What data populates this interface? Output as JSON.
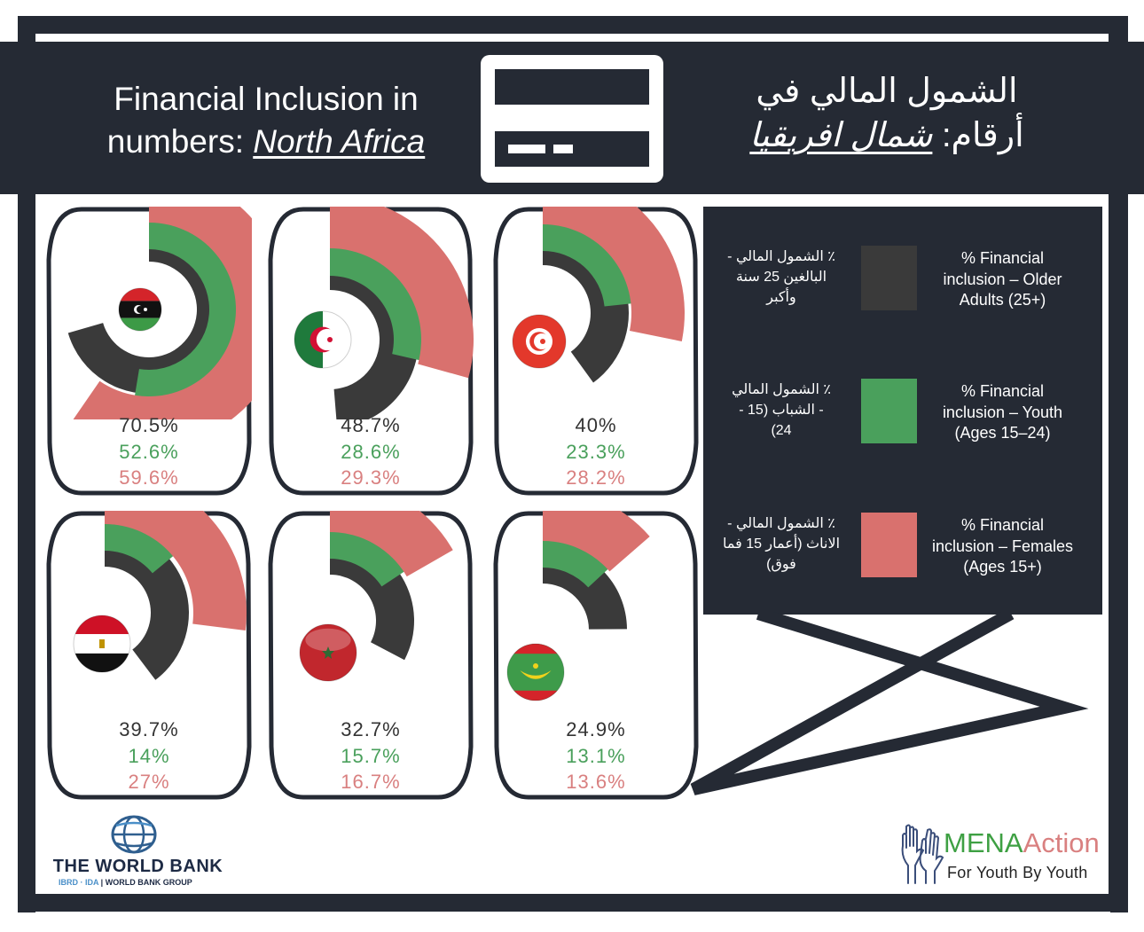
{
  "header": {
    "title_en_line1": "Financial Inclusion in",
    "title_en_line2_prefix": "numbers: ",
    "title_en_region": "North Africa",
    "title_ar_line1": "الشمول المالي في",
    "title_ar_line2_prefix": "أرقام: ",
    "title_ar_region": "شمال افريقيا",
    "icon": "credit-card-icon"
  },
  "colors": {
    "frame": "#252a34",
    "older": "#3a3a3a",
    "youth": "#4aa05c",
    "female": "#d9716e",
    "older_text": "#333333",
    "youth_text": "#4aa05c",
    "female_text": "#d98080"
  },
  "legend": {
    "items": [
      {
        "key": "older",
        "label_en": "% Financial inclusion – Older Adults (25+)",
        "label_en_lines": [
          "% Financial",
          "inclusion – Older",
          "Adults (25+)"
        ],
        "label_ar_lines": [
          "٪ الشمول المالي -",
          "البالغين 25 سنة",
          "وأكبر"
        ],
        "color": "#3a3a3a"
      },
      {
        "key": "youth",
        "label_en": "% Financial inclusion – Youth (Ages 15–24)",
        "label_en_lines": [
          "% Financial",
          "inclusion – Youth",
          "(Ages 15–24)"
        ],
        "label_ar_lines": [
          "٪ الشمول المالي",
          "- الشباب (15 -",
          "24)"
        ],
        "color": "#4aa05c"
      },
      {
        "key": "female",
        "label_en": "% Financial inclusion – Females (Ages 15+)",
        "label_en_lines": [
          "% Financial",
          "inclusion – Females",
          "(Ages 15+)"
        ],
        "label_ar_lines": [
          "٪ الشمول المالي -",
          "الاناث (أعمار 15 فما",
          "فوق)"
        ],
        "color": "#d9716e"
      }
    ]
  },
  "countries": [
    {
      "name": "Libya",
      "flag": "libya-flag-icon",
      "older": "70.5%",
      "youth": "52.6%",
      "female": "59.6%"
    },
    {
      "name": "Algeria",
      "flag": "algeria-flag-icon",
      "older": "48.7%",
      "youth": "28.6%",
      "female": "29.3%"
    },
    {
      "name": "Tunisia",
      "flag": "tunisia-flag-icon",
      "older": "40%",
      "youth": "23.3%",
      "female": "28.2%"
    },
    {
      "name": "Egypt",
      "flag": "egypt-flag-icon",
      "older": "39.7%",
      "youth": "14%",
      "female": "27%"
    },
    {
      "name": "Morocco",
      "flag": "morocco-flag-icon",
      "older": "32.7%",
      "youth": "15.7%",
      "female": "16.7%"
    },
    {
      "name": "Mauritania",
      "flag": "mauritania-flag-icon",
      "older": "24.9%",
      "youth": "13.1%",
      "female": "13.6%"
    }
  ],
  "logos": {
    "world_bank": {
      "title": "THE WORLD BANK",
      "sub_blue": "IBRD · IDA",
      "sub_sep": " | ",
      "sub_dark": "WORLD BANK GROUP",
      "icon": "globe-icon"
    },
    "mena_action": {
      "name_part1": "MENA",
      "name_part2": "Action",
      "tagline": "For Youth By Youth",
      "icon": "raised-hands-icon"
    }
  },
  "chart_data": {
    "type": "radial-bar",
    "title": "Financial Inclusion in numbers: North Africa",
    "categories": [
      "Libya",
      "Algeria",
      "Tunisia",
      "Egypt",
      "Morocco",
      "Mauritania"
    ],
    "series": [
      {
        "name": "% Financial inclusion – Older Adults (25+)",
        "color": "#3a3a3a",
        "values": [
          70.5,
          48.7,
          40.0,
          39.7,
          32.7,
          24.9
        ]
      },
      {
        "name": "% Financial inclusion – Youth (Ages 15–24)",
        "color": "#4aa05c",
        "values": [
          52.6,
          28.6,
          23.3,
          14.0,
          15.7,
          13.1
        ]
      },
      {
        "name": "% Financial inclusion – Females (Ages 15+)",
        "color": "#d9716e",
        "values": [
          59.6,
          29.3,
          28.2,
          27.0,
          16.7,
          13.6
        ]
      }
    ],
    "unit": "%",
    "angle_scale": "100% = 360° clockwise from 12 o'clock",
    "legend_position": "right"
  }
}
